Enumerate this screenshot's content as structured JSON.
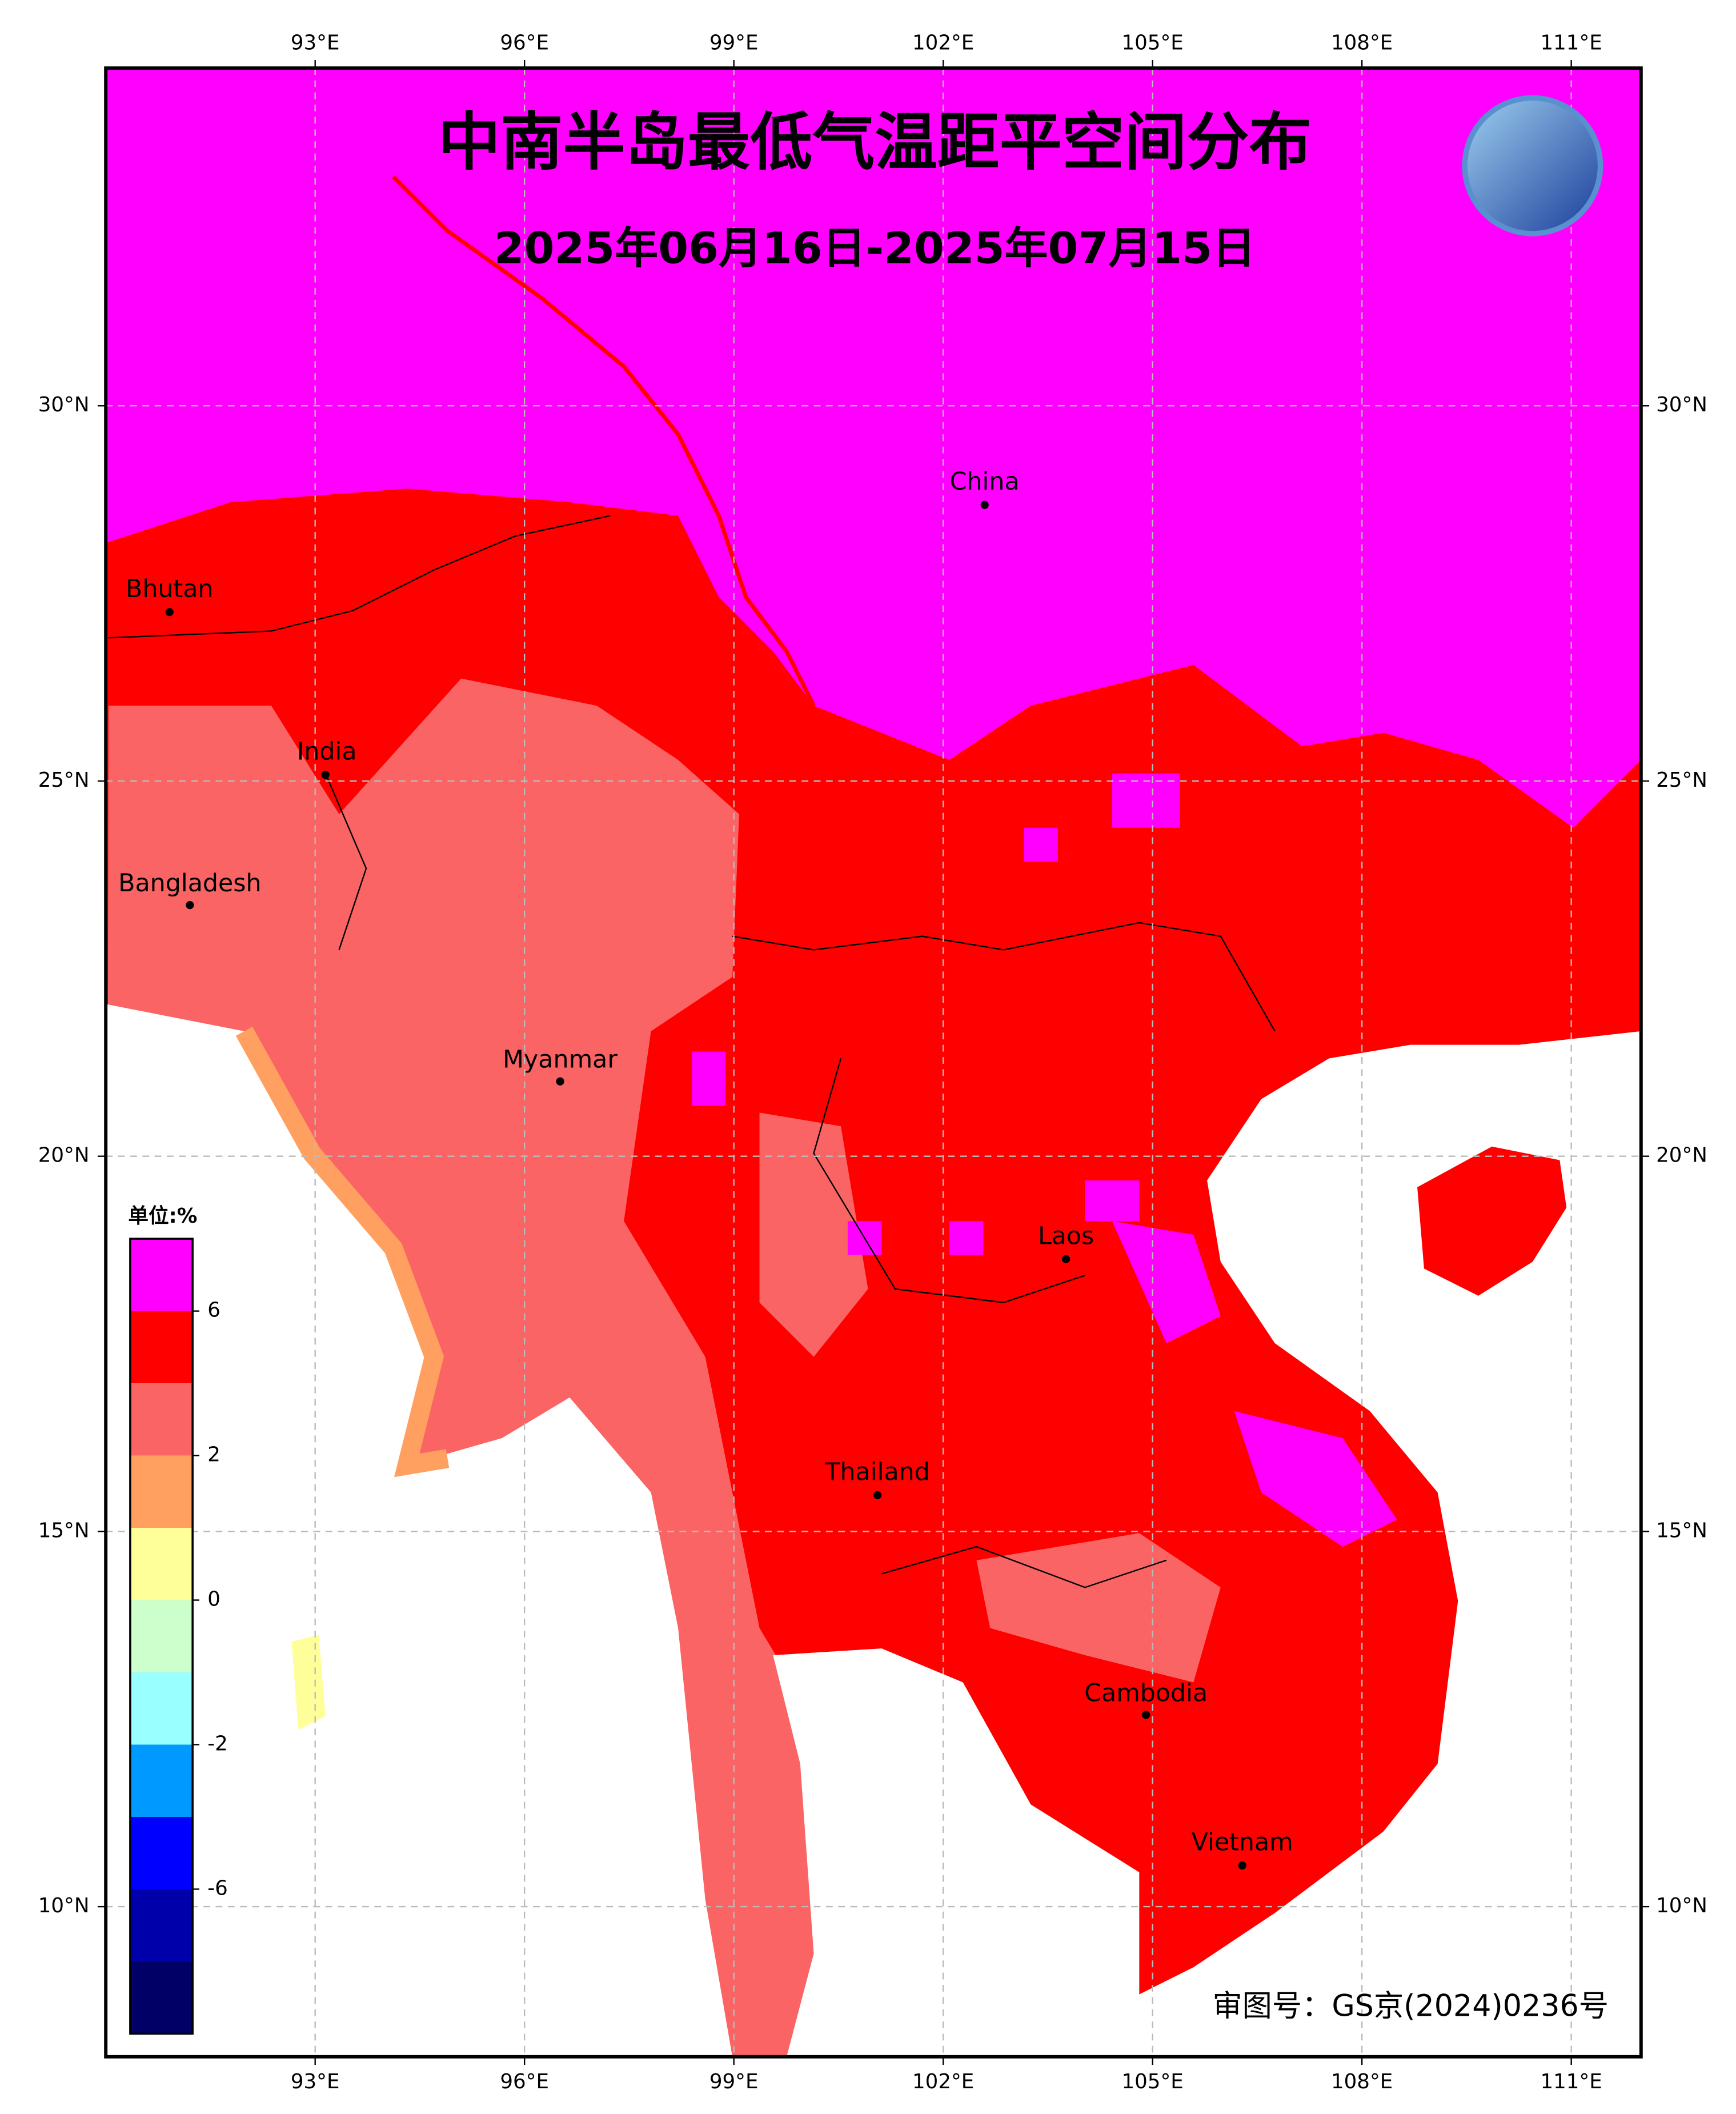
{
  "title": "中南半岛最低气温距平空间分布",
  "subtitle": "2025年06月16日-2025年07月15日",
  "map": {
    "xlim": [
      90,
      112
    ],
    "ylim": [
      8,
      34.5
    ],
    "xticks": [
      {
        "value": 93,
        "label": "93°E"
      },
      {
        "value": 96,
        "label": "96°E"
      },
      {
        "value": 99,
        "label": "99°E"
      },
      {
        "value": 102,
        "label": "102°E"
      },
      {
        "value": 105,
        "label": "105°E"
      },
      {
        "value": 108,
        "label": "108°E"
      },
      {
        "value": 111,
        "label": "111°E"
      }
    ],
    "yticks": [
      {
        "value": 10,
        "label": "10°N"
      },
      {
        "value": 15,
        "label": "15°N"
      },
      {
        "value": 20,
        "label": "20°N"
      },
      {
        "value": 25,
        "label": "25°N"
      },
      {
        "value": 30,
        "label": "30°N"
      }
    ],
    "grid": true
  },
  "places": [
    "China",
    "Bhutan",
    "India",
    "Bangladesh",
    "Myanmar",
    "Laos",
    "Thailand",
    "Cambodia",
    "Vietnam"
  ],
  "legend": {
    "title": "单位:%",
    "colors": [
      "#ff00ff",
      "#ff0000",
      "#fa6464",
      "#ffa060",
      "#ffff99",
      "#ccffcc",
      "#99ffff",
      "#0099ff",
      "#0000ff",
      "#0000aa",
      "#000066"
    ],
    "ticks": [
      6,
      2,
      0,
      -2,
      -6
    ]
  },
  "credit": "审图号：GS京(2024)0236号"
}
